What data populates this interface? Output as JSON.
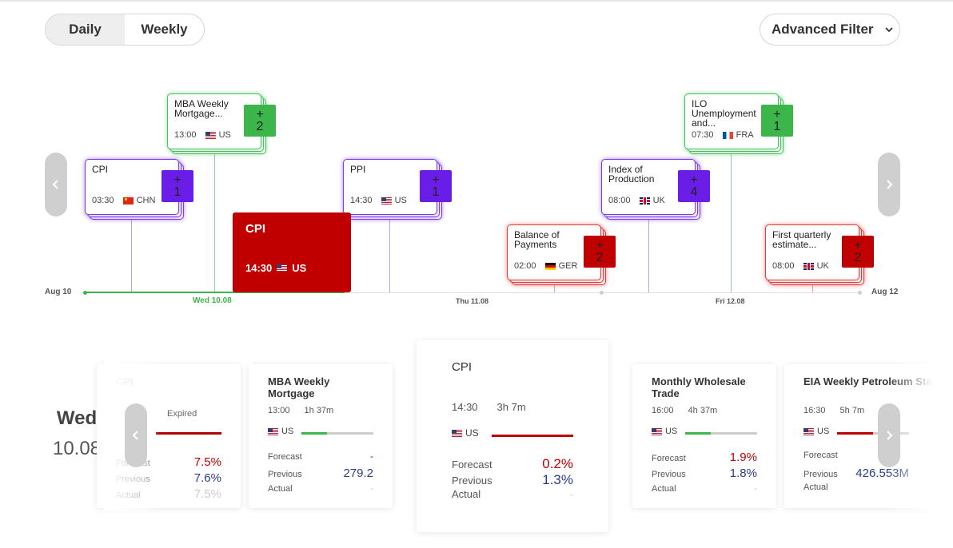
{
  "toggle": {
    "daily": "Daily",
    "weekly": "Weekly"
  },
  "filter": {
    "label": "Advanced Filter"
  },
  "timeline": {
    "start_label": "Aug 10",
    "end_label": "Aug 12",
    "days": [
      "Wed 10.08",
      "Thu 11.08",
      "Fri 12.08"
    ],
    "events": [
      {
        "name": "CPI",
        "time": "03:30",
        "country": "CHN",
        "more": "+ 1",
        "color": "purple"
      },
      {
        "name": "MBA Weekly Mortgage...",
        "time": "13:00",
        "country": "US",
        "more": "+ 2",
        "color": "green"
      },
      {
        "name": "PPI",
        "time": "14:30",
        "country": "US",
        "more": "+ 1",
        "color": "purple"
      },
      {
        "name": "Balance of Payments",
        "time": "02:00",
        "country": "GER",
        "more": "+ 2",
        "color": "red"
      },
      {
        "name": "Index of Production",
        "time": "08:00",
        "country": "UK",
        "more": "+ 4",
        "color": "purple"
      },
      {
        "name": "ILO Unemployment and...",
        "time": "07:30",
        "country": "FRA",
        "more": "+ 1",
        "color": "green"
      },
      {
        "name": "First quarterly estimate...",
        "time": "08:00",
        "country": "UK",
        "more": "+ 2",
        "color": "red"
      }
    ],
    "featured": {
      "name": "CPI",
      "time": "14:30",
      "country": "US"
    },
    "progress": 0.34
  },
  "day": {
    "dow": "Wed",
    "date": "10.08"
  },
  "cards": [
    {
      "name": "CPI",
      "time": "",
      "countdown": "Expired",
      "country": "",
      "forecast": "7.5%",
      "previous": "7.6%",
      "actual": "7.5%",
      "progress": 1.0
    },
    {
      "name": "MBA Weekly Mortgage",
      "time": "13:00",
      "countdown": "1h 37m",
      "country": "US",
      "forecast": "-",
      "previous": "279.2",
      "actual": "-",
      "progress": 0.35
    },
    {
      "name": "CPI",
      "time": "14:30",
      "countdown": "3h 7m",
      "country": "US",
      "forecast": "0.2%",
      "previous": "1.3%",
      "actual": "-",
      "progress": 1.0
    },
    {
      "name": "Monthly Wholesale Trade",
      "time": "16:00",
      "countdown": "4h 37m",
      "country": "US",
      "forecast": "1.9%",
      "previous": "1.8%",
      "actual": "-",
      "progress": 0.35
    },
    {
      "name": "EIA Weekly Petroleum Status Report",
      "time": "16:30",
      "countdown": "5h 7m",
      "country": "US",
      "forecast": "",
      "previous": "426.553M",
      "actual": "",
      "progress": 0.5
    }
  ],
  "labels": {
    "forecast": "Forecast",
    "previous": "Previous",
    "actual": "Actual"
  },
  "icons": {
    "prev": "chevron-left-icon",
    "next": "chevron-right-icon",
    "dropdown": "chevron-down-icon"
  },
  "colors": {
    "red": "#c00000",
    "purple": "#6a1de6",
    "green": "#3cb54b"
  }
}
